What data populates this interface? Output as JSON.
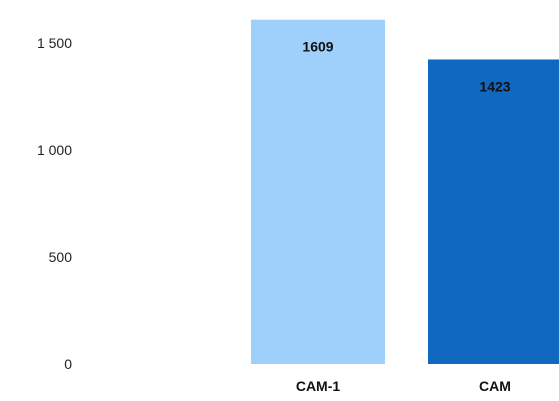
{
  "chart_data": {
    "type": "bar",
    "title": "",
    "xlabel": "",
    "ylabel": "",
    "categories": [
      "CAM-1",
      "CAM"
    ],
    "values": [
      1609,
      1423
    ],
    "data_labels": [
      "1609",
      "1423"
    ],
    "ylim": [
      0,
      1600
    ],
    "yticks": [
      {
        "value": 0,
        "label": "0"
      },
      {
        "value": 500,
        "label": "500"
      },
      {
        "value": 1000,
        "label": "1 000"
      },
      {
        "value": 1500,
        "label": "1 500"
      }
    ],
    "grid": false,
    "legend": "none",
    "colors": [
      "#9fcffb",
      "#1068c0"
    ]
  }
}
